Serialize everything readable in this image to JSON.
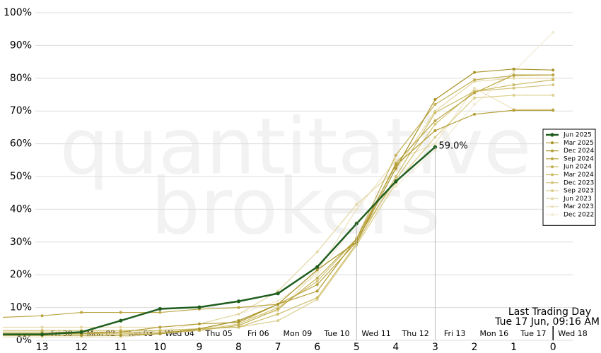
{
  "chart_data": {
    "type": "line",
    "watermark": [
      "quantitative",
      "brokers"
    ],
    "annotation": [
      "Last Trading Day",
      "Tue 17 Jun, 09:16 AM"
    ],
    "x": [
      14,
      13,
      12,
      11,
      10,
      9,
      8,
      7,
      6,
      5,
      4,
      3,
      2,
      1,
      0
    ],
    "xlim": [
      14,
      -0.5
    ],
    "xticks": [
      13,
      12,
      11,
      10,
      9,
      8,
      7,
      6,
      5,
      4,
      3,
      2,
      1,
      0
    ],
    "x2ticks": [
      {
        "value": 12.5,
        "label": "Fri 30"
      },
      {
        "value": 11.5,
        "label": "Mon 02"
      },
      {
        "value": 10.5,
        "label": "Tue 03"
      },
      {
        "value": 9.5,
        "label": "Wed 04"
      },
      {
        "value": 8.5,
        "label": "Thu 05"
      },
      {
        "value": 7.5,
        "label": "Fri 06"
      },
      {
        "value": 6.5,
        "label": "Mon 09"
      },
      {
        "value": 5.5,
        "label": "Tue 10"
      },
      {
        "value": 4.5,
        "label": "Wed 11"
      },
      {
        "value": 3.5,
        "label": "Thu 12"
      },
      {
        "value": 2.5,
        "label": "Fri 13"
      },
      {
        "value": 1.5,
        "label": "Mon 16"
      },
      {
        "value": 0.5,
        "label": "Tue 17"
      },
      {
        "value": -0.5,
        "label": "Wed 18"
      }
    ],
    "ylim": [
      0,
      100
    ],
    "yticks": [
      {
        "value": 0,
        "label": "0%"
      },
      {
        "value": 10,
        "label": "10%"
      },
      {
        "value": 20,
        "label": "20%"
      },
      {
        "value": 30,
        "label": "30%"
      },
      {
        "value": 40,
        "label": "40%"
      },
      {
        "value": 50,
        "label": "50%"
      },
      {
        "value": 60,
        "label": "60%"
      },
      {
        "value": 70,
        "label": "70%"
      },
      {
        "value": 80,
        "label": "80%"
      },
      {
        "value": 90,
        "label": "90%"
      },
      {
        "value": 100,
        "label": "100%"
      }
    ],
    "grid": true,
    "legend": "right",
    "series": [
      {
        "name": "Dec 2022",
        "color": "#f1ead4",
        "values": [
          1,
          1,
          1,
          2,
          3,
          5,
          8,
          12,
          20,
          36,
          47,
          58,
          72,
          82,
          94
        ]
      },
      {
        "name": "Mar 2023",
        "color": "#ebe2bf",
        "values": [
          1,
          1,
          1,
          1,
          2,
          3,
          6,
          9,
          21,
          40,
          55,
          60,
          77,
          70.5,
          70.5
        ]
      },
      {
        "name": "Jun 2023",
        "color": "#e3d7a5",
        "values": [
          4,
          4,
          4,
          4,
          4,
          5,
          8,
          15,
          27,
          41.5,
          52,
          70,
          79,
          80,
          80
        ]
      },
      {
        "name": "Sep 2023",
        "color": "#dccf8e",
        "values": [
          3,
          3,
          3,
          3,
          3,
          3.5,
          4,
          6,
          12.5,
          29,
          48,
          62,
          74,
          74.8,
          74.8
        ]
      },
      {
        "name": "Dec 2023",
        "color": "#d4c479",
        "values": [
          2,
          2,
          2,
          2,
          2,
          3,
          5,
          10,
          18,
          31,
          49,
          66,
          76,
          77,
          78
        ]
      },
      {
        "name": "Mar 2024",
        "color": "#ccbb66",
        "values": [
          3,
          3,
          3,
          3,
          3,
          3.5,
          4,
          8,
          13,
          29.5,
          50,
          69.5,
          76,
          78,
          79.5
        ]
      },
      {
        "name": "Jun 2024",
        "color": "#c3b054",
        "values": [
          2.5,
          2.5,
          2.5,
          2.5,
          2.5,
          3,
          4.5,
          9.5,
          19,
          31,
          56.5,
          72,
          79.5,
          80.8,
          81
        ]
      },
      {
        "name": "Sep 2024",
        "color": "#bba644",
        "values": [
          7,
          7.5,
          8.5,
          8.5,
          8.5,
          9.5,
          10,
          11,
          17,
          30,
          54,
          67,
          75.5,
          81,
          81
        ]
      },
      {
        "name": "Dec 2024",
        "color": "#b39d34",
        "values": [
          2,
          2,
          2,
          2.5,
          4,
          5,
          5.5,
          11,
          15,
          31,
          53.5,
          64,
          69,
          70.2,
          70.2
        ]
      },
      {
        "name": "Mar 2025",
        "color": "#a99328",
        "values": [
          1.5,
          1.5,
          1.5,
          1.5,
          2,
          3.5,
          6,
          11,
          21.5,
          30,
          52.5,
          73.5,
          81.8,
          82.8,
          82.5
        ]
      },
      {
        "name": "Jun 2025",
        "color": "#1f5e1f",
        "values": [
          1.8,
          1.8,
          2.5,
          6,
          9.6,
          10.1,
          11.9,
          14.3,
          22.4,
          35.6,
          48.5,
          59.0,
          null,
          null,
          null
        ],
        "value_labels": [
          null,
          null,
          null,
          null,
          null,
          null,
          null,
          null,
          null,
          null,
          null,
          "59.0%",
          null,
          null,
          null
        ]
      }
    ]
  }
}
